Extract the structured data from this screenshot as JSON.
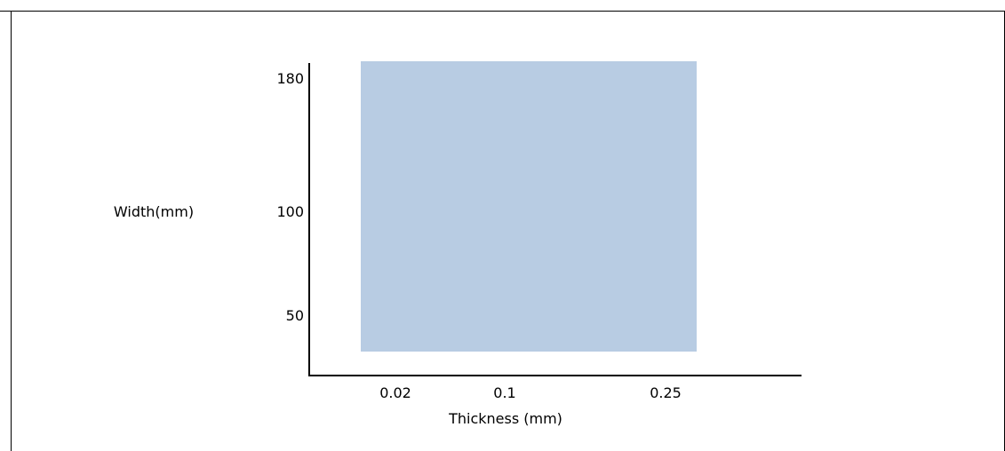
{
  "chart_data": {
    "type": "area",
    "title": "",
    "xlabel": "Thickness (mm)",
    "ylabel": "Width(mm)",
    "x_ticks": [
      "0.02",
      "0.1",
      "0.25"
    ],
    "y_ticks": [
      "180",
      "100",
      "50"
    ],
    "region": {
      "thickness_range": [
        "0.02",
        "0.25"
      ],
      "width_range": [
        "50",
        "180"
      ]
    },
    "fill_color": "#b8cce3",
    "grid": false,
    "legend": "none"
  }
}
